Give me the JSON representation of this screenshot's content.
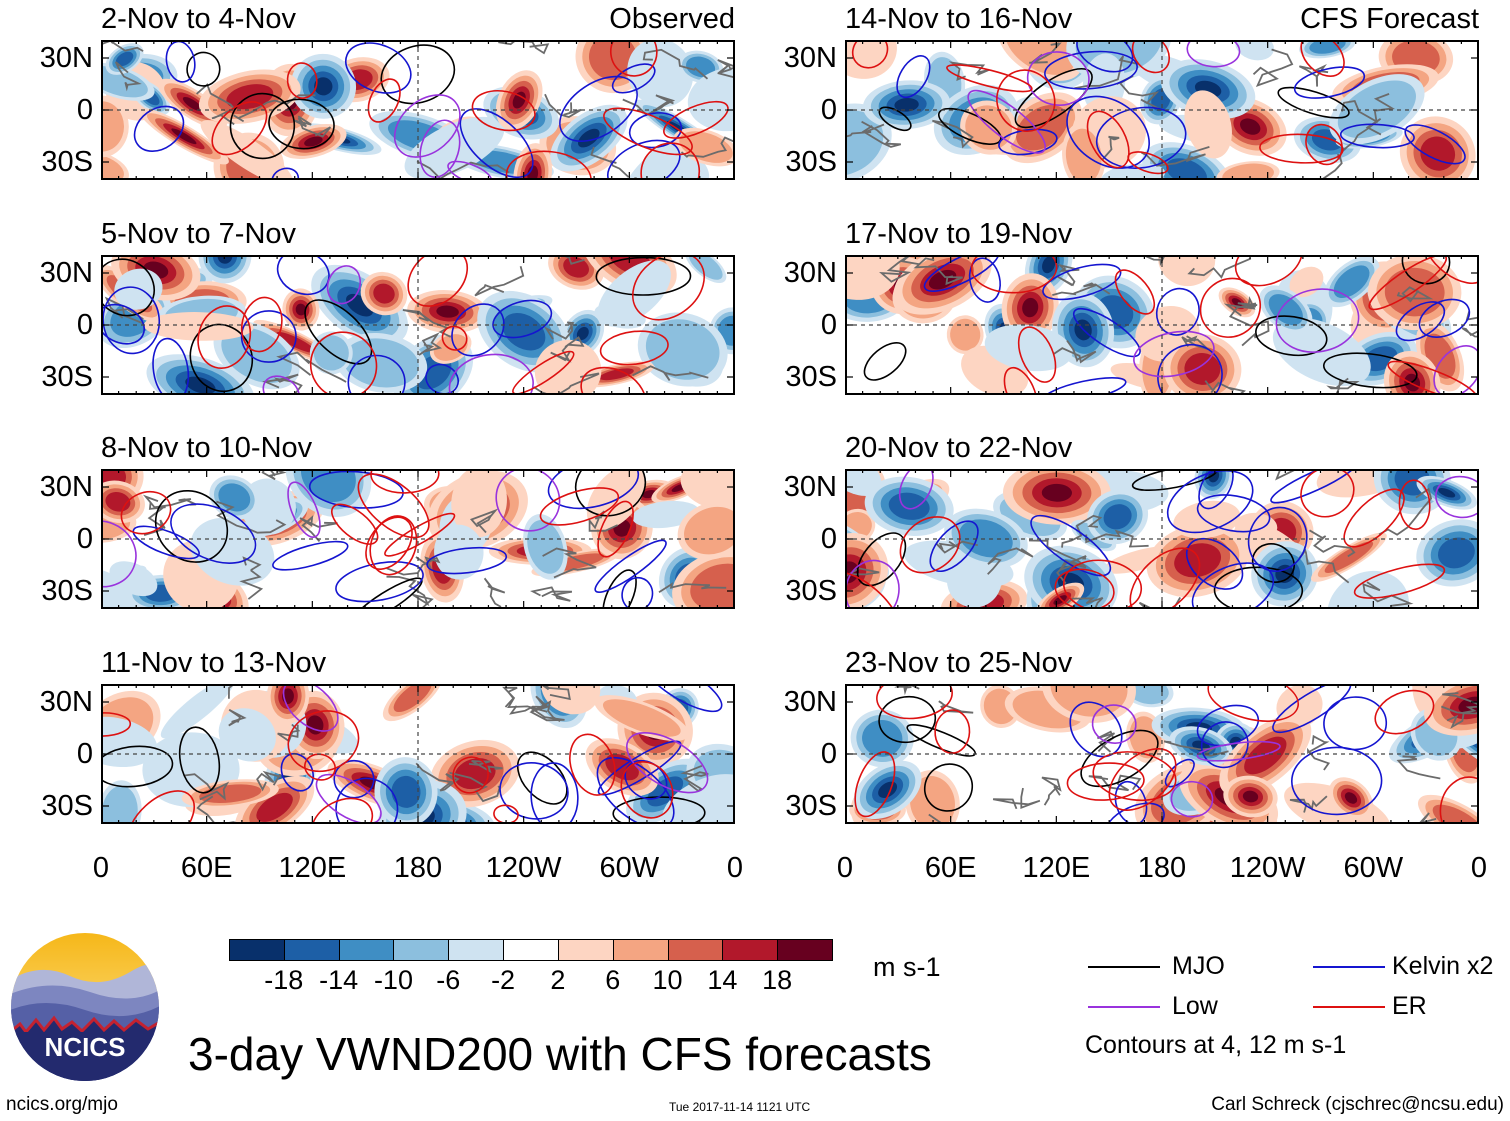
{
  "figure": {
    "title": "3-day VWND200 with CFS forecasts",
    "url": "ncics.org/mjo",
    "timestamp": "Tue 2017-11-14 1121 UTC",
    "author": "Carl Schreck (cjschrec@ncsu.edu)",
    "logo_text": "NCICS"
  },
  "chart_data": {
    "type": "heatmap",
    "variable": "VWND200",
    "units": "m s-1",
    "left_column_label": "Observed",
    "right_column_label": "CFS Forecast",
    "ylabels": [
      "30N",
      "0",
      "30S"
    ],
    "xlabels": [
      "0",
      "60E",
      "120E",
      "180",
      "120W",
      "60W",
      "0"
    ],
    "panels": [
      {
        "title": "2-Nov to 4-Nov",
        "source": "Observed"
      },
      {
        "title": "5-Nov to 7-Nov",
        "source": "Observed"
      },
      {
        "title": "8-Nov to 10-Nov",
        "source": "Observed"
      },
      {
        "title": "11-Nov to 13-Nov",
        "source": "Observed"
      },
      {
        "title": "14-Nov to 16-Nov",
        "source": "CFS Forecast"
      },
      {
        "title": "17-Nov to 19-Nov",
        "source": "CFS Forecast"
      },
      {
        "title": "20-Nov to 22-Nov",
        "source": "CFS Forecast"
      },
      {
        "title": "23-Nov to 25-Nov",
        "source": "CFS Forecast"
      }
    ],
    "colorbar": {
      "labels": [
        "-18",
        "-14",
        "-10",
        "-6",
        "-2",
        "2",
        "6",
        "10",
        "14",
        "18"
      ],
      "colors": [
        "#08306b",
        "#1d5fa6",
        "#3f8ec4",
        "#8cbfde",
        "#cfe3f1",
        "#ffffff",
        "#fdd5c2",
        "#f4a582",
        "#d6604d",
        "#b2182b",
        "#67001f"
      ]
    },
    "legend": [
      {
        "name": "MJO",
        "color": "#000000"
      },
      {
        "name": "Kelvin x2",
        "color": "#1515d0"
      },
      {
        "name": "Low",
        "color": "#9933dd"
      },
      {
        "name": "ER",
        "color": "#dd1111"
      }
    ],
    "contour_note": "Contours at 4, 12 m s-1"
  }
}
